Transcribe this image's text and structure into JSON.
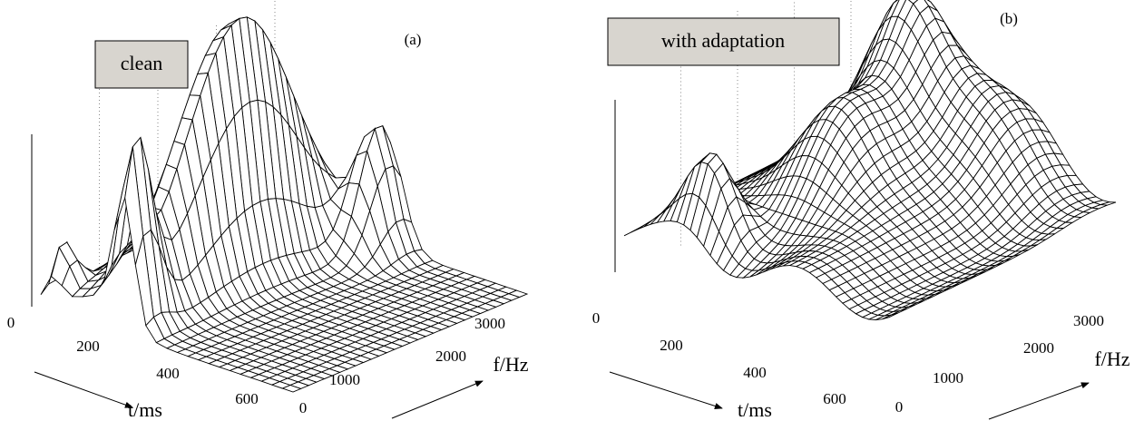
{
  "panels": [
    {
      "label": "(a)",
      "title": "clean",
      "t_axis": "t/ms",
      "t_ticks": [
        "0",
        "200",
        "400",
        "600"
      ],
      "f_axis": "f/Hz",
      "f_ticks": [
        "0",
        "1000",
        "2000",
        "3000"
      ]
    },
    {
      "label": "(b)",
      "title": "with adaptation",
      "t_axis": "t/ms",
      "t_ticks": [
        "0",
        "200",
        "400",
        "600"
      ],
      "f_axis": "f/Hz",
      "f_ticks": [
        "0",
        "1000",
        "2000",
        "3000"
      ]
    }
  ]
}
